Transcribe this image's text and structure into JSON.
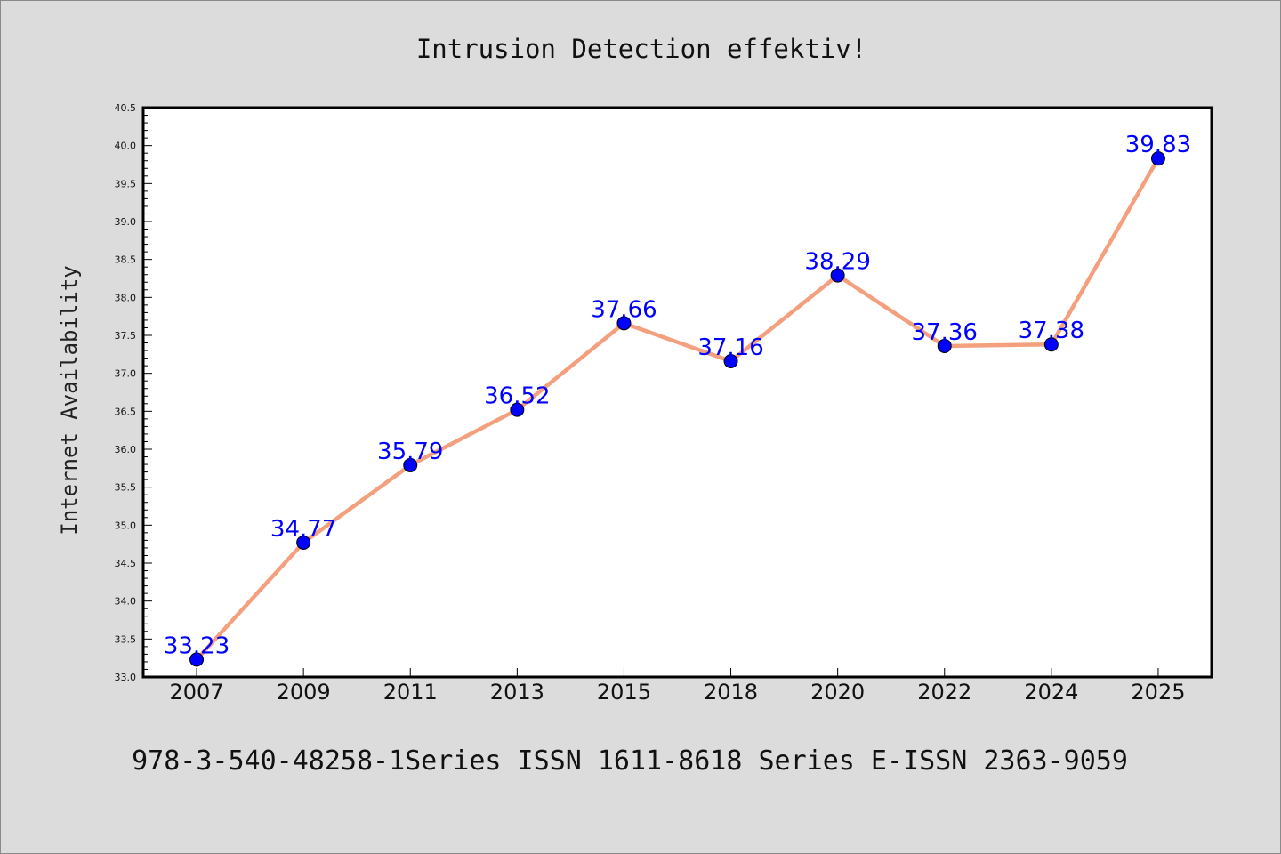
{
  "chart_data": {
    "type": "line",
    "title": "Intrusion Detection effektiv!",
    "xlabel": "",
    "ylabel": "Internet Availability",
    "categories": [
      "2007",
      "2009",
      "2011",
      "2013",
      "2015",
      "2018",
      "2020",
      "2022",
      "2024",
      "2025"
    ],
    "values": [
      33.23,
      34.77,
      35.79,
      36.52,
      37.66,
      37.16,
      38.29,
      37.36,
      37.38,
      39.83
    ],
    "data_labels": [
      "33.23",
      "34.77",
      "35.79",
      "36.52",
      "37.66",
      "37.16",
      "38.29",
      "37.36",
      "37.38",
      "39.83"
    ],
    "ylim": [
      33.0,
      40.5
    ],
    "yticks": [
      "33.0",
      "33.5",
      "34.0",
      "34.5",
      "35.0",
      "35.5",
      "36.0",
      "36.5",
      "37.0",
      "37.5",
      "38.0",
      "38.5",
      "39.0",
      "39.5",
      "40.0",
      "40.5"
    ],
    "grid": false,
    "legend": "none",
    "colors": {
      "line": "#f4a07f",
      "marker": "#0000ff",
      "data_label": "#0000ff",
      "plot_bg": "#ffffff",
      "page_bg": "#dcdcdc"
    }
  },
  "footer_text": "978-3-540-48258-1Series ISSN 1611-8618 Series E-ISSN 2363-9059"
}
